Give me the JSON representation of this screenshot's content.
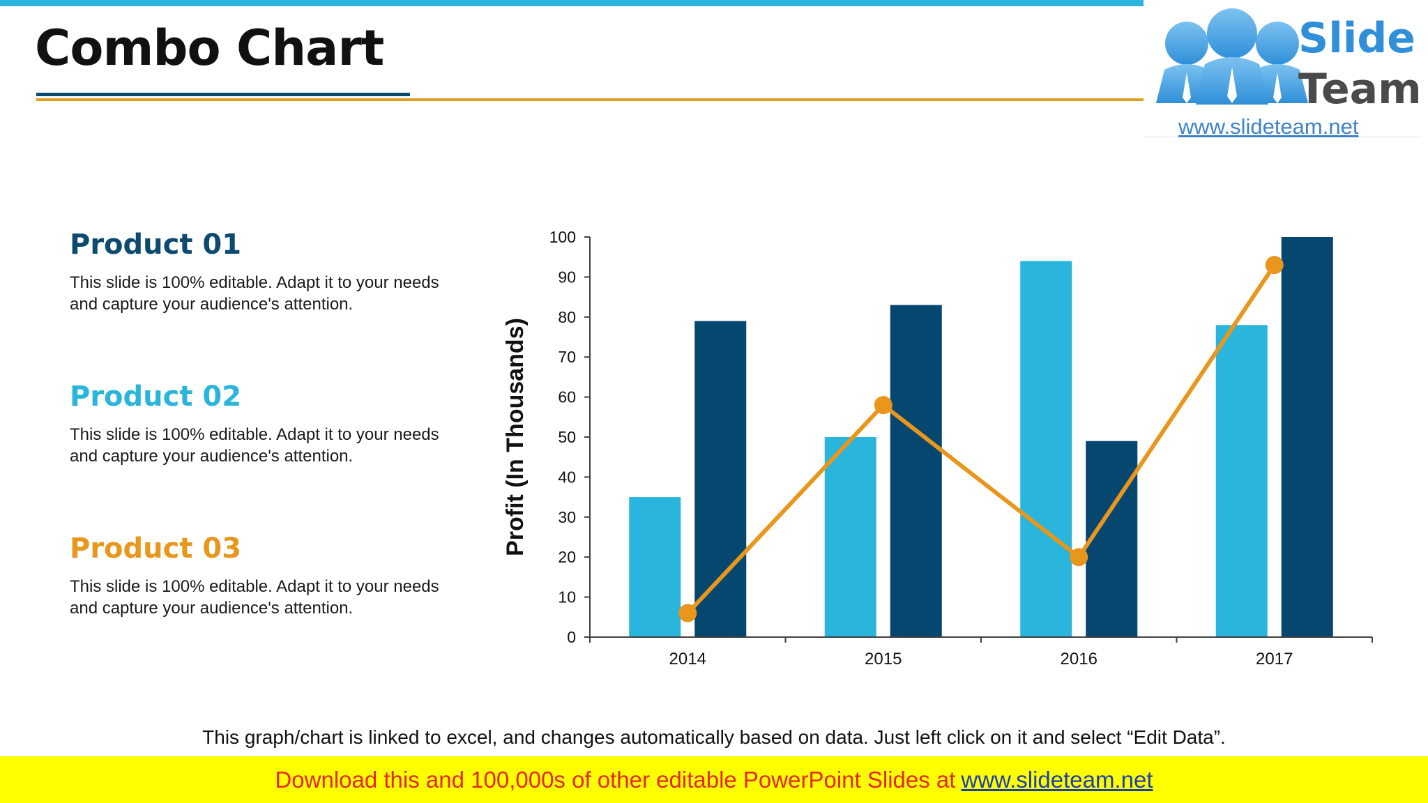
{
  "title": "Combo Chart",
  "logo": {
    "word1": "Slide",
    "word2": "Team",
    "url": "www.slideteam.net"
  },
  "products": [
    {
      "name": "Product 01",
      "color": "#0d4a70",
      "text1": "This slide is 100% editable. Adapt it to your needs",
      "text2": "and capture your audience's attention."
    },
    {
      "name": "Product 02",
      "color": "#29b5dc",
      "text1": "This slide is 100% editable. Adapt it to your needs",
      "text2": "and capture your audience's attention."
    },
    {
      "name": "Product 03",
      "color": "#e8961c",
      "text1": "This slide is 100% editable. Adapt it to your needs",
      "text2": "and capture your audience's attention."
    }
  ],
  "footnote": "This graph/chart is linked to excel, and changes automatically based on data. Just left click on it and select “Edit Data”.",
  "banner": {
    "text": "Download this and 100,000s of other editable PowerPoint Slides at",
    "link": "www.slideteam.net"
  },
  "colors": {
    "light_bar": "#29b5dc",
    "dark_bar": "#05476e",
    "line": "#e8961c",
    "accent_stripe": "#29b5dc"
  },
  "chart_data": {
    "type": "bar",
    "categories": [
      "2014",
      "2015",
      "2016",
      "2017"
    ],
    "series": [
      {
        "type": "bar",
        "color": "#29b5dc",
        "values": [
          35,
          50,
          94,
          78
        ]
      },
      {
        "type": "bar",
        "color": "#05476e",
        "values": [
          79,
          83,
          49,
          100
        ]
      },
      {
        "type": "line",
        "color": "#e8961c",
        "values": [
          6,
          58,
          20,
          93
        ]
      }
    ],
    "title": "",
    "xlabel": "",
    "ylabel": "Profit  (In Thousands)",
    "ylim": [
      0,
      100
    ],
    "yticks": [
      0,
      10,
      20,
      30,
      40,
      50,
      60,
      70,
      80,
      90,
      100
    ],
    "grid": false,
    "legend": "none"
  }
}
